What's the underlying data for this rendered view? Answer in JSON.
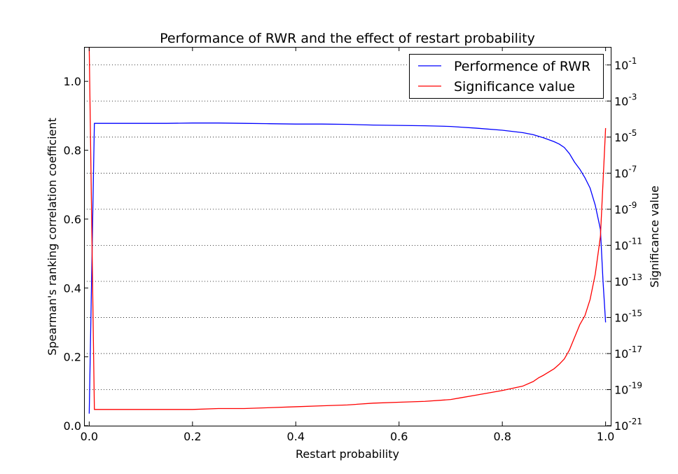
{
  "chart_data": {
    "type": "line",
    "title": "Performance of RWR and the effect of restart probability",
    "xlabel": "Restart probability",
    "ylabel": "Spearman's ranking correlation coefficient",
    "y2label": "Significance value",
    "xlim": [
      -0.01,
      1.01
    ],
    "ylim": [
      0,
      1.1
    ],
    "y2lim_log10": [
      -21,
      0
    ],
    "y2scale": "log",
    "grid": "horizontal dotted lines at right-axis decades",
    "legend_position": "top-right",
    "xticks": [
      "0.0",
      "0.2",
      "0.4",
      "0.6",
      "0.8",
      "1.0"
    ],
    "xtick_values": [
      0.0,
      0.2,
      0.4,
      0.6,
      0.8,
      1.0
    ],
    "yticks": [
      "0.0",
      "0.2",
      "0.4",
      "0.6",
      "0.8",
      "1.0"
    ],
    "ytick_values": [
      0.0,
      0.2,
      0.4,
      0.6,
      0.8,
      1.0
    ],
    "y2tick_exponents": [
      "-21",
      "-19",
      "-17",
      "-15",
      "-13",
      "-11",
      "-9",
      "-7",
      "-5",
      "-3",
      "-1"
    ],
    "y2tick_values": [
      -21,
      -19,
      -17,
      -15,
      -13,
      -11,
      -9,
      -7,
      -5,
      -3,
      -1
    ],
    "y2tick_base": "10",
    "series": [
      {
        "name": "Performence of RWR",
        "axis": "left",
        "color": "#0000ff",
        "x": [
          0.0,
          0.01,
          0.05,
          0.1,
          0.15,
          0.2,
          0.25,
          0.3,
          0.35,
          0.4,
          0.45,
          0.5,
          0.55,
          0.6,
          0.65,
          0.7,
          0.72,
          0.75,
          0.8,
          0.84,
          0.86,
          0.88,
          0.9,
          0.91,
          0.92,
          0.93,
          0.94,
          0.95,
          0.96,
          0.97,
          0.98,
          0.99,
          0.995,
          1.0
        ],
        "y": [
          0.035,
          0.878,
          0.878,
          0.878,
          0.878,
          0.879,
          0.879,
          0.878,
          0.877,
          0.876,
          0.876,
          0.875,
          0.873,
          0.872,
          0.871,
          0.869,
          0.867,
          0.864,
          0.858,
          0.851,
          0.845,
          0.836,
          0.825,
          0.818,
          0.808,
          0.79,
          0.765,
          0.745,
          0.72,
          0.69,
          0.64,
          0.57,
          0.42,
          0.3
        ]
      },
      {
        "name": "Significance value",
        "axis": "right",
        "color": "#ff0000",
        "x": [
          0.0,
          0.01,
          0.05,
          0.1,
          0.15,
          0.2,
          0.25,
          0.3,
          0.35,
          0.4,
          0.45,
          0.5,
          0.55,
          0.6,
          0.65,
          0.7,
          0.72,
          0.75,
          0.8,
          0.84,
          0.86,
          0.87,
          0.88,
          0.9,
          0.91,
          0.92,
          0.93,
          0.94,
          0.95,
          0.96,
          0.97,
          0.98,
          0.99,
          0.995,
          1.0
        ],
        "y_log10": [
          0.0,
          -20.1,
          -20.1,
          -20.1,
          -20.1,
          -20.1,
          -20.05,
          -20.05,
          -20.0,
          -19.95,
          -19.9,
          -19.85,
          -19.75,
          -19.7,
          -19.65,
          -19.55,
          -19.45,
          -19.3,
          -19.05,
          -18.8,
          -18.55,
          -18.35,
          -18.2,
          -17.85,
          -17.6,
          -17.3,
          -16.8,
          -16.1,
          -15.4,
          -14.9,
          -14.0,
          -12.6,
          -10.5,
          -7.5,
          -4.5
        ]
      }
    ]
  }
}
